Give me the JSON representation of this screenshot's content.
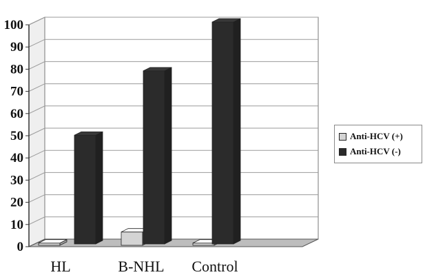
{
  "chart_data": {
    "type": "bar",
    "categories": [
      "HL",
      "B-NHL",
      "Control"
    ],
    "series": [
      {
        "name": "Anti-HCV (+)",
        "values": [
          1,
          6,
          1
        ],
        "color": "#d4d4d4"
      },
      {
        "name": "Anti-HCV (-)",
        "values": [
          49,
          78,
          100
        ],
        "color": "#2b2b2b"
      }
    ],
    "title": "",
    "xlabel": "",
    "ylabel": "",
    "ylim": [
      0,
      100
    ],
    "yticks": [
      0,
      10,
      20,
      30,
      40,
      50,
      60,
      70,
      80,
      90,
      100
    ],
    "grid": true,
    "style": "3d",
    "legend_position": "right"
  }
}
